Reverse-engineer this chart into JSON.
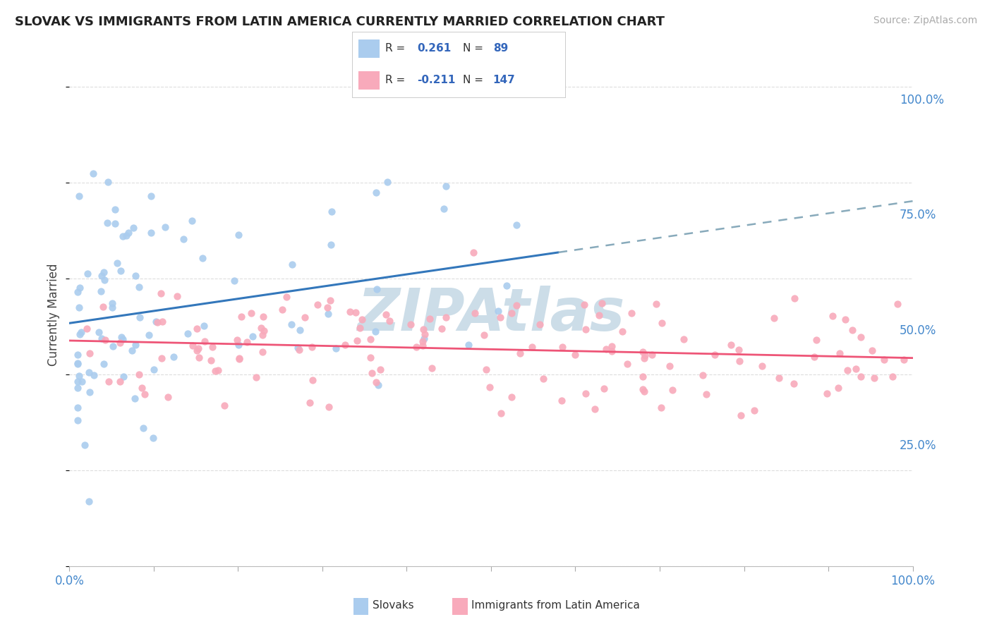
{
  "title": "SLOVAK VS IMMIGRANTS FROM LATIN AMERICA CURRENTLY MARRIED CORRELATION CHART",
  "source": "Source: ZipAtlas.com",
  "ylabel": "Currently Married",
  "xlim": [
    0.0,
    1.0
  ],
  "ylim": [
    0.0,
    1.05
  ],
  "y_ticks": [
    0.25,
    0.5,
    0.75,
    1.0
  ],
  "y_tick_labels": [
    "25.0%",
    "50.0%",
    "75.0%",
    "100.0%"
  ],
  "slovak_R": 0.261,
  "slovak_N": 89,
  "latin_R": -0.211,
  "latin_N": 147,
  "slovak_color": "#aaccee",
  "latin_color": "#f8aabb",
  "trend_slovak_color": "#3377bb",
  "trend_latin_color": "#ee5577",
  "trend_slovak_dash_color": "#88aabb",
  "background_color": "#ffffff",
  "grid_color": "#dddddd",
  "watermark_color": "#ccdde8",
  "tick_color": "#4488cc",
  "title_color": "#222222",
  "source_color": "#aaaaaa",
  "ylabel_color": "#444444",
  "legend_text_color": "#333333",
  "legend_val_color": "#3366bb"
}
